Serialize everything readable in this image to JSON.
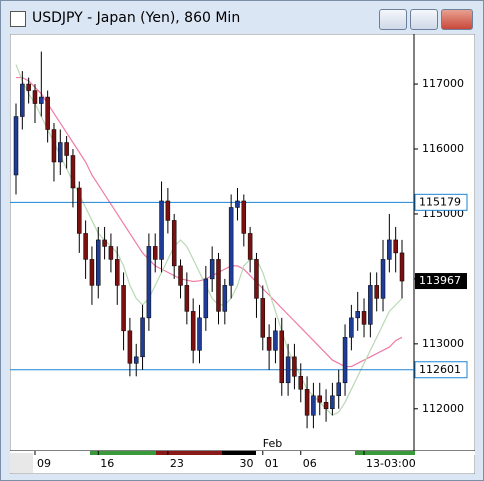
{
  "chart_data": {
    "type": "candlestick",
    "title": "USDJPY - Japan (Yen), 860 Min",
    "categories": [
      null,
      null,
      null,
      "09",
      null,
      null,
      null,
      null,
      null,
      null,
      null,
      null,
      null,
      "16",
      null,
      null,
      null,
      null,
      null,
      null,
      null,
      null,
      null,
      null,
      "23",
      null,
      null,
      null,
      null,
      null,
      null,
      null,
      null,
      null,
      null,
      "30",
      null,
      null,
      null,
      "01",
      null,
      null,
      null,
      null,
      null,
      "06",
      null,
      null,
      null,
      null,
      null,
      null,
      null,
      null,
      null,
      "13-03:00",
      null,
      null,
      null,
      null,
      null,
      null
    ],
    "x_sublabel": "Feb",
    "open": [
      115600,
      116500,
      117000,
      116900,
      116700,
      116800,
      116300,
      115800,
      116100,
      115900,
      115400,
      114700,
      114300,
      113900,
      114600,
      114500,
      114300,
      113900,
      113200,
      112700,
      112800,
      113400,
      114500,
      114300,
      115200,
      114900,
      114200,
      113900,
      113500,
      112900,
      113400,
      114000,
      114300,
      113500,
      113900,
      115100,
      115200,
      114700,
      114300,
      113700,
      113100,
      112900,
      113200,
      112400,
      112800,
      112500,
      112300,
      111900,
      112200,
      112100,
      112000,
      112200,
      112400,
      113100,
      113400,
      113500,
      113300,
      113900,
      113700,
      114300,
      114600,
      114400
    ],
    "high": [
      116700,
      117200,
      117100,
      117000,
      117500,
      116900,
      116400,
      116300,
      116200,
      116000,
      115500,
      114900,
      114500,
      114800,
      114800,
      114700,
      114500,
      114100,
      113400,
      113000,
      113600,
      114700,
      114700,
      115500,
      115400,
      115000,
      114300,
      114100,
      113700,
      113600,
      114200,
      114500,
      114400,
      114000,
      115300,
      115400,
      115300,
      114800,
      114400,
      113900,
      113300,
      113400,
      113400,
      113000,
      113000,
      112700,
      112500,
      112400,
      112400,
      112300,
      112400,
      112600,
      113300,
      113600,
      113800,
      113700,
      114100,
      114100,
      114600,
      115000,
      114800,
      114600
    ],
    "low": [
      115300,
      116300,
      116700,
      116400,
      116500,
      116100,
      115500,
      115600,
      115700,
      115100,
      114400,
      114000,
      113600,
      113700,
      114300,
      114100,
      113600,
      112900,
      112500,
      112500,
      112600,
      113200,
      114100,
      114100,
      114700,
      114000,
      113700,
      113300,
      112700,
      112700,
      113200,
      113800,
      113300,
      113300,
      113700,
      114900,
      114500,
      114100,
      113400,
      112900,
      112600,
      112700,
      112200,
      112200,
      112300,
      112100,
      111700,
      111700,
      111900,
      111800,
      111900,
      112000,
      112200,
      112900,
      113200,
      113100,
      113100,
      113500,
      113500,
      114100,
      114100,
      113700
    ],
    "close": [
      116500,
      117000,
      116900,
      116700,
      116800,
      116300,
      115800,
      116100,
      115900,
      115400,
      114700,
      114300,
      113900,
      114600,
      114500,
      114300,
      113900,
      113200,
      112700,
      112800,
      113400,
      114500,
      114300,
      115200,
      114900,
      114200,
      113900,
      113500,
      112900,
      113400,
      114000,
      114300,
      113500,
      113900,
      115100,
      115200,
      114700,
      114300,
      113700,
      113100,
      112900,
      113200,
      112400,
      112800,
      112500,
      112300,
      111900,
      112200,
      112100,
      112000,
      112200,
      112400,
      113100,
      113400,
      113500,
      113300,
      113900,
      113700,
      114300,
      114600,
      114400,
      113967
    ],
    "up_color": "#1f3c96",
    "down_color": "#7a1010",
    "series": [
      {
        "color": "#f07aa8",
        "values": [
          117100,
          117100,
          117050,
          116950,
          116850,
          116700,
          116550,
          116400,
          116250,
          116100,
          115950,
          115800,
          115600,
          115450,
          115300,
          115150,
          115000,
          114850,
          114700,
          114550,
          114400,
          114300,
          114200,
          114150,
          114100,
          114050,
          114000,
          113980,
          113960,
          113970,
          114000,
          114050,
          114100,
          114150,
          114200,
          114200,
          114150,
          114050,
          113950,
          113850,
          113750,
          113650,
          113550,
          113450,
          113350,
          113250,
          113150,
          113050,
          112950,
          112850,
          112750,
          112700,
          112650,
          112650,
          112700,
          112750,
          112800,
          112850,
          112900,
          112950,
          113050,
          113100
        ]
      },
      {
        "color": "#b9d9b4",
        "values": [
          117300,
          117050,
          116850,
          116700,
          116500,
          116300,
          116100,
          115900,
          115700,
          115500,
          115300,
          115100,
          114900,
          114700,
          114600,
          114500,
          114400,
          114200,
          113900,
          113700,
          113600,
          113700,
          113900,
          114100,
          114300,
          114500,
          114600,
          114500,
          114300,
          114100,
          113900,
          113700,
          113600,
          113600,
          113700,
          113900,
          114200,
          114300,
          114300,
          114100,
          113800,
          113500,
          113200,
          112900,
          112700,
          112500,
          112300,
          112200,
          112100,
          112000,
          111900,
          111950,
          112100,
          112300,
          112500,
          112700,
          112900,
          113100,
          113300,
          113500,
          113600,
          113700
        ]
      }
    ],
    "hlines": [
      115179,
      112601
    ],
    "hline_color": "#1e82d2",
    "ylim": [
      111350,
      117740
    ],
    "yticks": [
      112000,
      113000,
      114000,
      115000,
      116000,
      117000
    ]
  }
}
